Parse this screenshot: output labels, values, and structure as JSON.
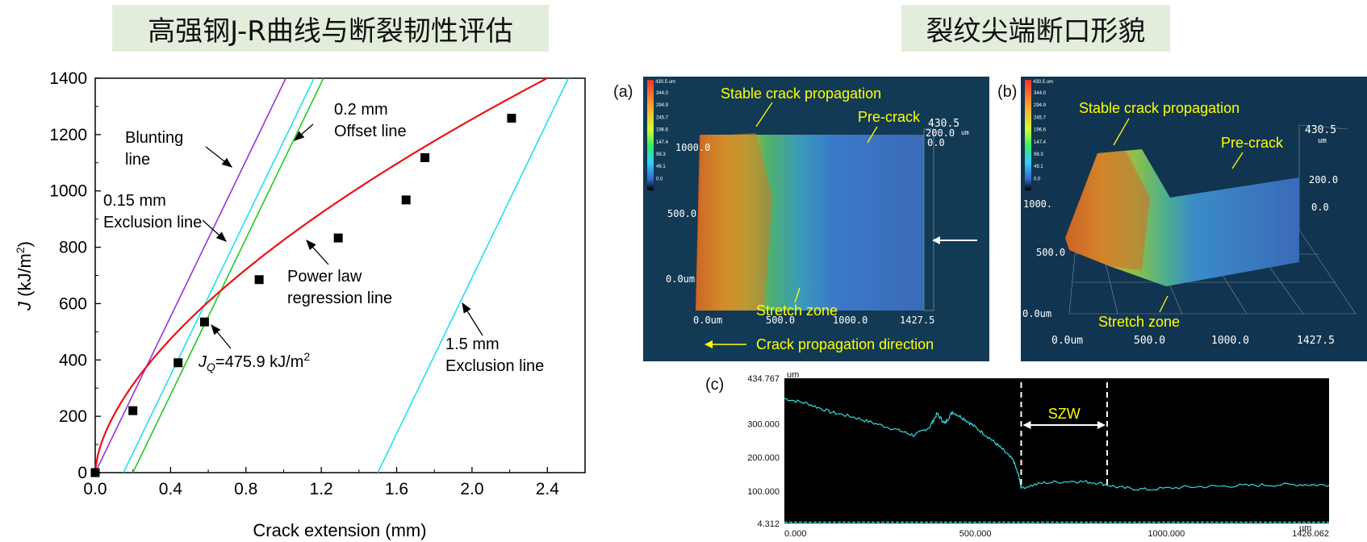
{
  "titles": {
    "left": "高强钢J-R曲线与断裂韧性评估",
    "right": "裂纹尖端断口形貌"
  },
  "chart_data": [
    {
      "type": "scatter",
      "xlabel": "Crack extension (mm)",
      "ylabel_main": "J",
      "ylabel_unit": " (kJ/m",
      "ylabel_sup": "2",
      "ylabel_close": ")",
      "xlim": [
        0,
        2.6
      ],
      "ylim": [
        0,
        1400
      ],
      "xticks": [
        0.0,
        0.4,
        0.8,
        1.2,
        1.6,
        2.0,
        2.4
      ],
      "xtick_labels": [
        "0.0",
        "0.4",
        "0.8",
        "1.2",
        "1.6",
        "2.0",
        "2.4"
      ],
      "yticks": [
        0,
        200,
        400,
        600,
        800,
        1000,
        1200,
        1400
      ],
      "ytick_labels": [
        "0",
        "200",
        "400",
        "600",
        "800",
        "1000",
        "1200",
        "1400"
      ],
      "points": [
        {
          "x": 0.0,
          "y": 0
        },
        {
          "x": 0.2,
          "y": 220
        },
        {
          "x": 0.44,
          "y": 390
        },
        {
          "x": 0.58,
          "y": 535
        },
        {
          "x": 0.87,
          "y": 685
        },
        {
          "x": 1.29,
          "y": 833
        },
        {
          "x": 1.65,
          "y": 968
        },
        {
          "x": 1.75,
          "y": 1118
        },
        {
          "x": 2.21,
          "y": 1258
        }
      ],
      "power_law": {
        "C": 825.4,
        "n": 0.604,
        "color": "#ee1111"
      },
      "lines": [
        {
          "id": "blunting",
          "x0": 0.0,
          "slope": 1384,
          "color": "#9933dd"
        },
        {
          "id": "offset015",
          "x0": 0.15,
          "slope": 1384,
          "color": "#22e0ee"
        },
        {
          "id": "offset02",
          "x0": 0.2,
          "slope": 1384,
          "color": "#22cc22"
        },
        {
          "id": "offset15",
          "x0": 1.5,
          "slope": 1384,
          "color": "#22e0ee"
        }
      ],
      "annotations": {
        "blunting_1": "Blunting",
        "blunting_2": "line",
        "offset02_1": "0.2 mm",
        "offset02_2": "Offset line",
        "excl015_1": "0.15 mm",
        "excl015_2": "Exclusion line",
        "power_1": "Power law",
        "power_2": "regression line",
        "jq_main": "J",
        "jq_sub": "Q",
        "jq_value": "=475.9 kJ/m",
        "jq_sup": "2",
        "excl15_1": "1.5 mm",
        "excl15_2": "Exclusion line"
      }
    },
    {
      "type": "line",
      "label": "(c)",
      "ylabel": "um",
      "xlabel": "um",
      "xlim": [
        0,
        1426.062
      ],
      "ylim": [
        4.312,
        434.767
      ],
      "ytick_labels": [
        "434.767",
        "300.000",
        "200.000",
        "100.000",
        "4.312"
      ],
      "xtick_labels": [
        "0.000",
        "500.000",
        "1000.000",
        "1426.062"
      ],
      "profile": [
        {
          "x": 0,
          "y": 375
        },
        {
          "x": 60,
          "y": 360
        },
        {
          "x": 120,
          "y": 335
        },
        {
          "x": 180,
          "y": 320
        },
        {
          "x": 240,
          "y": 300
        },
        {
          "x": 300,
          "y": 280
        },
        {
          "x": 340,
          "y": 265
        },
        {
          "x": 380,
          "y": 290
        },
        {
          "x": 400,
          "y": 330
        },
        {
          "x": 420,
          "y": 300
        },
        {
          "x": 440,
          "y": 335
        },
        {
          "x": 470,
          "y": 315
        },
        {
          "x": 500,
          "y": 290
        },
        {
          "x": 540,
          "y": 255
        },
        {
          "x": 570,
          "y": 225
        },
        {
          "x": 600,
          "y": 190
        },
        {
          "x": 615,
          "y": 140
        },
        {
          "x": 620,
          "y": 110
        },
        {
          "x": 680,
          "y": 125
        },
        {
          "x": 760,
          "y": 130
        },
        {
          "x": 820,
          "y": 125
        },
        {
          "x": 880,
          "y": 110
        },
        {
          "x": 950,
          "y": 105
        },
        {
          "x": 1050,
          "y": 112
        },
        {
          "x": 1150,
          "y": 115
        },
        {
          "x": 1250,
          "y": 118
        },
        {
          "x": 1350,
          "y": 120
        },
        {
          "x": 1426,
          "y": 118
        }
      ],
      "szw_label": "SZW",
      "szw_range": [
        620,
        845
      ],
      "color": "#33dddd"
    }
  ],
  "panel_a": {
    "label": "(a)",
    "colorbar_top": "430.5 um",
    "colorbar_ticks": [
      "344.0",
      "294.9",
      "245.7",
      "196.6",
      "147.4",
      "98.3",
      "49.1",
      "0.0"
    ],
    "stable_crack": "Stable crack propagation",
    "pre_crack": "Pre-crack",
    "stretch_zone": "Stretch zone",
    "direction": "Crack propagation direction",
    "z_top": "430.5",
    "z_mid": "200.0",
    "z_unit": "um",
    "z_zero": "0.0",
    "y_1000": "1000.0",
    "y_500": "500.0",
    "y_0": "0.0um",
    "x_0": "0.0um",
    "x_500": "500.0",
    "x_1000": "1000.0",
    "x_end": "1427.5"
  },
  "panel_b": {
    "label": "(b)",
    "colorbar_top": "430.5 um",
    "colorbar_ticks": [
      "344.0",
      "294.9",
      "245.7",
      "196.6",
      "147.4",
      "98.3",
      "49.1",
      "0.0"
    ],
    "stable_crack": "Stable crack propagation",
    "pre_crack": "Pre-crack",
    "stretch_zone": "Stretch zone",
    "z_top": "430.5",
    "z_unit": "um",
    "z_mid": "200.0",
    "z_zero": "0.0",
    "y_1000": "1000.",
    "y_500": "500.0",
    "y_0": "0.0um",
    "x_0": "0.0um",
    "x_500": "500.0",
    "x_1000": "1000.0",
    "x_end": "1427.5"
  }
}
